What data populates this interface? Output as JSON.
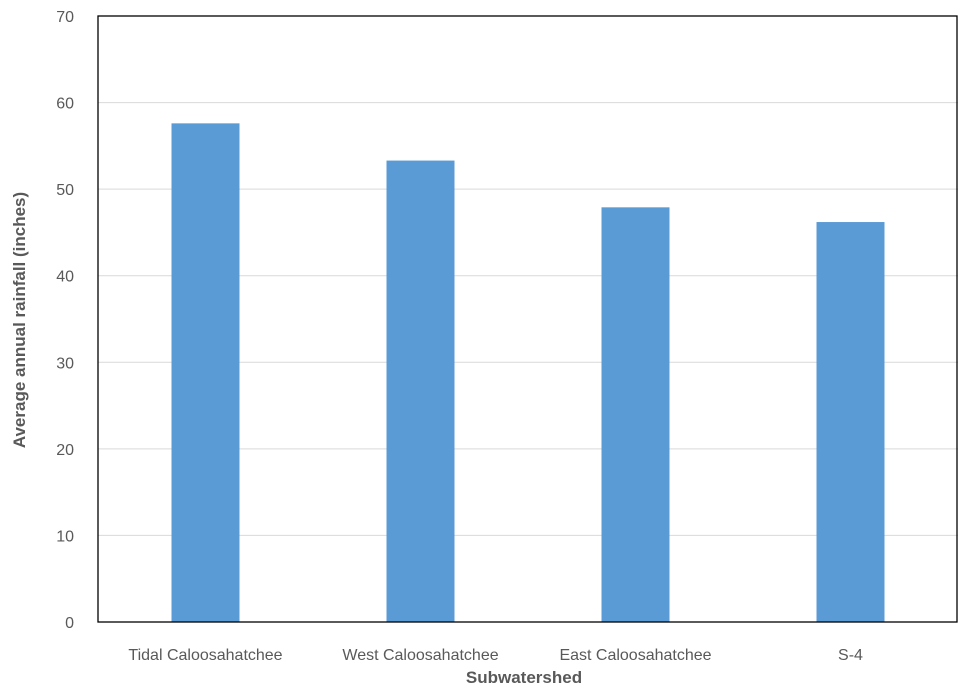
{
  "chart_data": {
    "type": "bar",
    "title": "",
    "xlabel": "Subwatershed",
    "ylabel": "Average annual rainfall (inches)",
    "categories": [
      "Tidal Caloosahatchee",
      "West Caloosahatchee",
      "East Caloosahatchee",
      "S-4"
    ],
    "values": [
      57.6,
      53.3,
      47.9,
      46.2
    ],
    "ylim": [
      0,
      70
    ],
    "yticks": [
      0,
      10,
      20,
      30,
      40,
      50,
      60,
      70
    ],
    "grid": true,
    "bar_color": "#5B9BD5",
    "grid_color": "#D9D9D9",
    "axis_color": "#000000"
  }
}
